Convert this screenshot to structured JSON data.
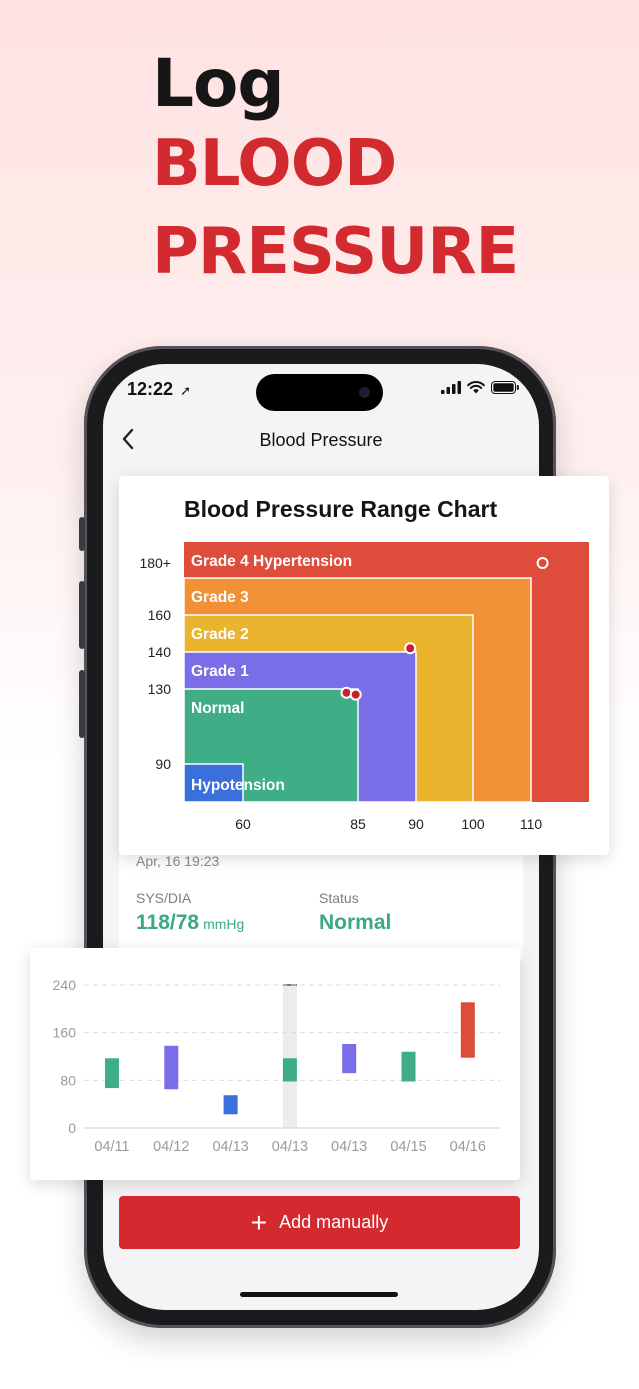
{
  "hero": {
    "line1": "Log",
    "line2": "BLOOD",
    "line3": "PRESSURE"
  },
  "status_bar": {
    "time": "12:22",
    "icons": [
      "location-arrow-icon",
      "signal-icon",
      "wifi-icon",
      "battery-icon"
    ]
  },
  "nav": {
    "title": "Blood Pressure",
    "back_icon": "chevron-left-icon"
  },
  "record": {
    "date": "Apr, 16  19:23",
    "sys_dia_label": "SYS/DIA",
    "sys_dia_value": "118/78",
    "unit": "mmHg",
    "status_label": "Status",
    "status_value": "Normal"
  },
  "add_button": {
    "label": "Add manually",
    "icon": "plus-icon"
  },
  "colors": {
    "accent_red": "#d32a2f",
    "normal_green": "#3fae87",
    "grade1_purple": "#7a6de8",
    "hypotension_blue": "#3a6fdc",
    "grade2_yellow": "#ebb42f",
    "grade3_orange": "#f29036",
    "grade4_red": "#de4c3c"
  },
  "chart_data": [
    {
      "type": "heatmap",
      "title": "Blood Pressure Range Chart",
      "y_ticks": [
        "180+",
        "160",
        "140",
        "130",
        "90"
      ],
      "x_ticks": [
        "60",
        "85",
        "90",
        "100",
        "110"
      ],
      "zones": [
        {
          "name": "Grade 4 Hypertension",
          "systolic_max": "180+",
          "diastolic_max": 110,
          "color": "#de4c3c"
        },
        {
          "name": "Grade 3",
          "systolic_max": 180,
          "diastolic_max": 110,
          "color": "#f29036"
        },
        {
          "name": "Grade 2",
          "systolic_max": 160,
          "diastolic_max": 100,
          "color": "#ebb42f"
        },
        {
          "name": "Grade 1",
          "systolic_max": 140,
          "diastolic_max": 90,
          "color": "#7a6de8"
        },
        {
          "name": "Normal",
          "systolic_max": 130,
          "diastolic_max": 85,
          "color": "#3fae87"
        },
        {
          "name": "Hypotension",
          "systolic_max": 90,
          "diastolic_max": 60,
          "color": "#3a6fdc"
        }
      ],
      "readings": [
        {
          "diastolic": 112,
          "systolic": 190,
          "style": "hollow"
        },
        {
          "diastolic": 89.5,
          "systolic": 142,
          "style": "filled"
        },
        {
          "diastolic": 82.5,
          "systolic": 128,
          "style": "filled"
        },
        {
          "diastolic": 84.5,
          "systolic": 127,
          "style": "filled"
        }
      ]
    },
    {
      "type": "bar",
      "subtype": "floating-range",
      "categories": [
        "04/11",
        "04/12",
        "04/13",
        "04/13",
        "04/13",
        "04/15",
        "04/16"
      ],
      "ylim": [
        0,
        240
      ],
      "y_ticks": [
        "240",
        "160",
        "80",
        "0"
      ],
      "grid": true,
      "highlighted_index": 3,
      "series": [
        {
          "ranges": [
            {
              "low": 67,
              "high": 117,
              "color": "#3fae87"
            },
            {
              "low": 65,
              "high": 138,
              "color": "#7a6de8"
            },
            {
              "low": 23,
              "high": 55,
              "color": "#3a6fdc"
            },
            {
              "low": 78,
              "high": 117,
              "color": "#3fae87"
            },
            {
              "low": 92,
              "high": 141,
              "color": "#7a6de8"
            },
            {
              "low": 78,
              "high": 128,
              "color": "#3fae87"
            },
            {
              "low": 118,
              "high": 211,
              "color": "#de4c3c"
            }
          ]
        }
      ]
    }
  ]
}
